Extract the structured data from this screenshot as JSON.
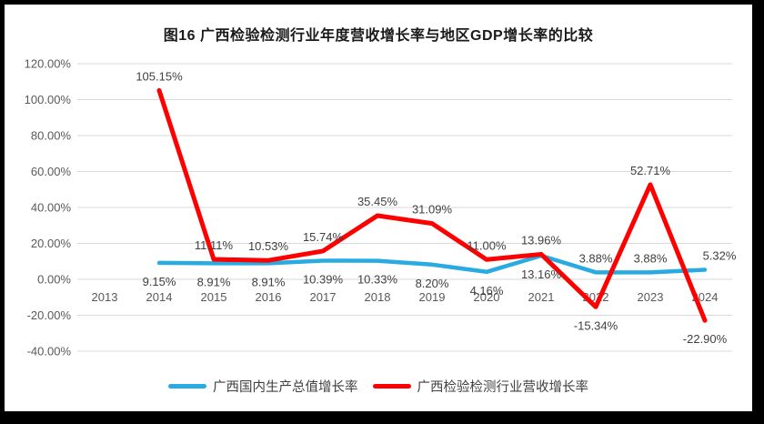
{
  "title": "图16 广西检验检测行业年度营收增长率与地区GDP增长率的比较",
  "chart_data": {
    "type": "line",
    "title": "图16 广西检验检测行业年度营收增长率与地区GDP增长率的比较",
    "xlabel": "",
    "ylabel": "",
    "ylim": [
      -40,
      120
    ],
    "grid": true,
    "legend_position": "bottom",
    "gridline_color": "#D9D9D9",
    "axis_label_color": "#595959",
    "data_label_color": "#404040",
    "categories": [
      "2013",
      "2014",
      "2015",
      "2016",
      "2017",
      "2018",
      "2019",
      "2020",
      "2021",
      "2022",
      "2023",
      "2024"
    ],
    "ytick_values": [
      120,
      100,
      80,
      60,
      40,
      20,
      0,
      -20,
      -40
    ],
    "ytick_labels": [
      "120.00%",
      "100.00%",
      "80.00%",
      "60.00%",
      "40.00%",
      "20.00%",
      "0.00%",
      "-20.00%",
      "-40.00%"
    ],
    "series": [
      {
        "id": "gdp",
        "name": "广西国内生产总值增长率",
        "color": "#29ABE2",
        "values": [
          null,
          9.15,
          8.91,
          8.91,
          10.39,
          10.33,
          8.2,
          4.16,
          13.16,
          3.88,
          3.88,
          5.32
        ],
        "labels": [
          null,
          "9.15%",
          "8.91%",
          "8.91%",
          "10.39%",
          "10.33%",
          "8.20%",
          "4.16%",
          "13.16%",
          "3.88%",
          "3.88%",
          "5.32%"
        ],
        "label_side": [
          null,
          "below",
          "below",
          "below",
          "below",
          "below",
          "below",
          "below",
          "below",
          "above",
          "above",
          "above"
        ],
        "label_dx": [
          0,
          0,
          0,
          0,
          0,
          0,
          0,
          0,
          0,
          0,
          0,
          16
        ]
      },
      {
        "id": "revenue",
        "name": "广西检验检测行业营收增长率",
        "color": "#FE0000",
        "values": [
          null,
          105.15,
          11.11,
          10.53,
          15.74,
          35.45,
          31.09,
          11.0,
          13.96,
          -15.34,
          52.71,
          -22.9
        ],
        "labels": [
          null,
          "105.15%",
          "11.11%",
          "10.53%",
          "15.74%",
          "35.45%",
          "31.09%",
          "11.00%",
          "13.96%",
          "-15.34%",
          "52.71%",
          "-22.90%"
        ],
        "label_side": [
          null,
          "above",
          "above",
          "above",
          "above",
          "above",
          "above",
          "above",
          "above",
          "below",
          "above",
          "below"
        ],
        "label_dx": [
          0,
          0,
          0,
          0,
          0,
          0,
          0,
          0,
          0,
          0,
          0,
          0
        ]
      }
    ]
  },
  "legend": {
    "items": [
      {
        "label": "广西国内生产总值增长率",
        "color": "#29ABE2"
      },
      {
        "label": "广西检验检测行业营收增长率",
        "color": "#FE0000"
      }
    ]
  }
}
